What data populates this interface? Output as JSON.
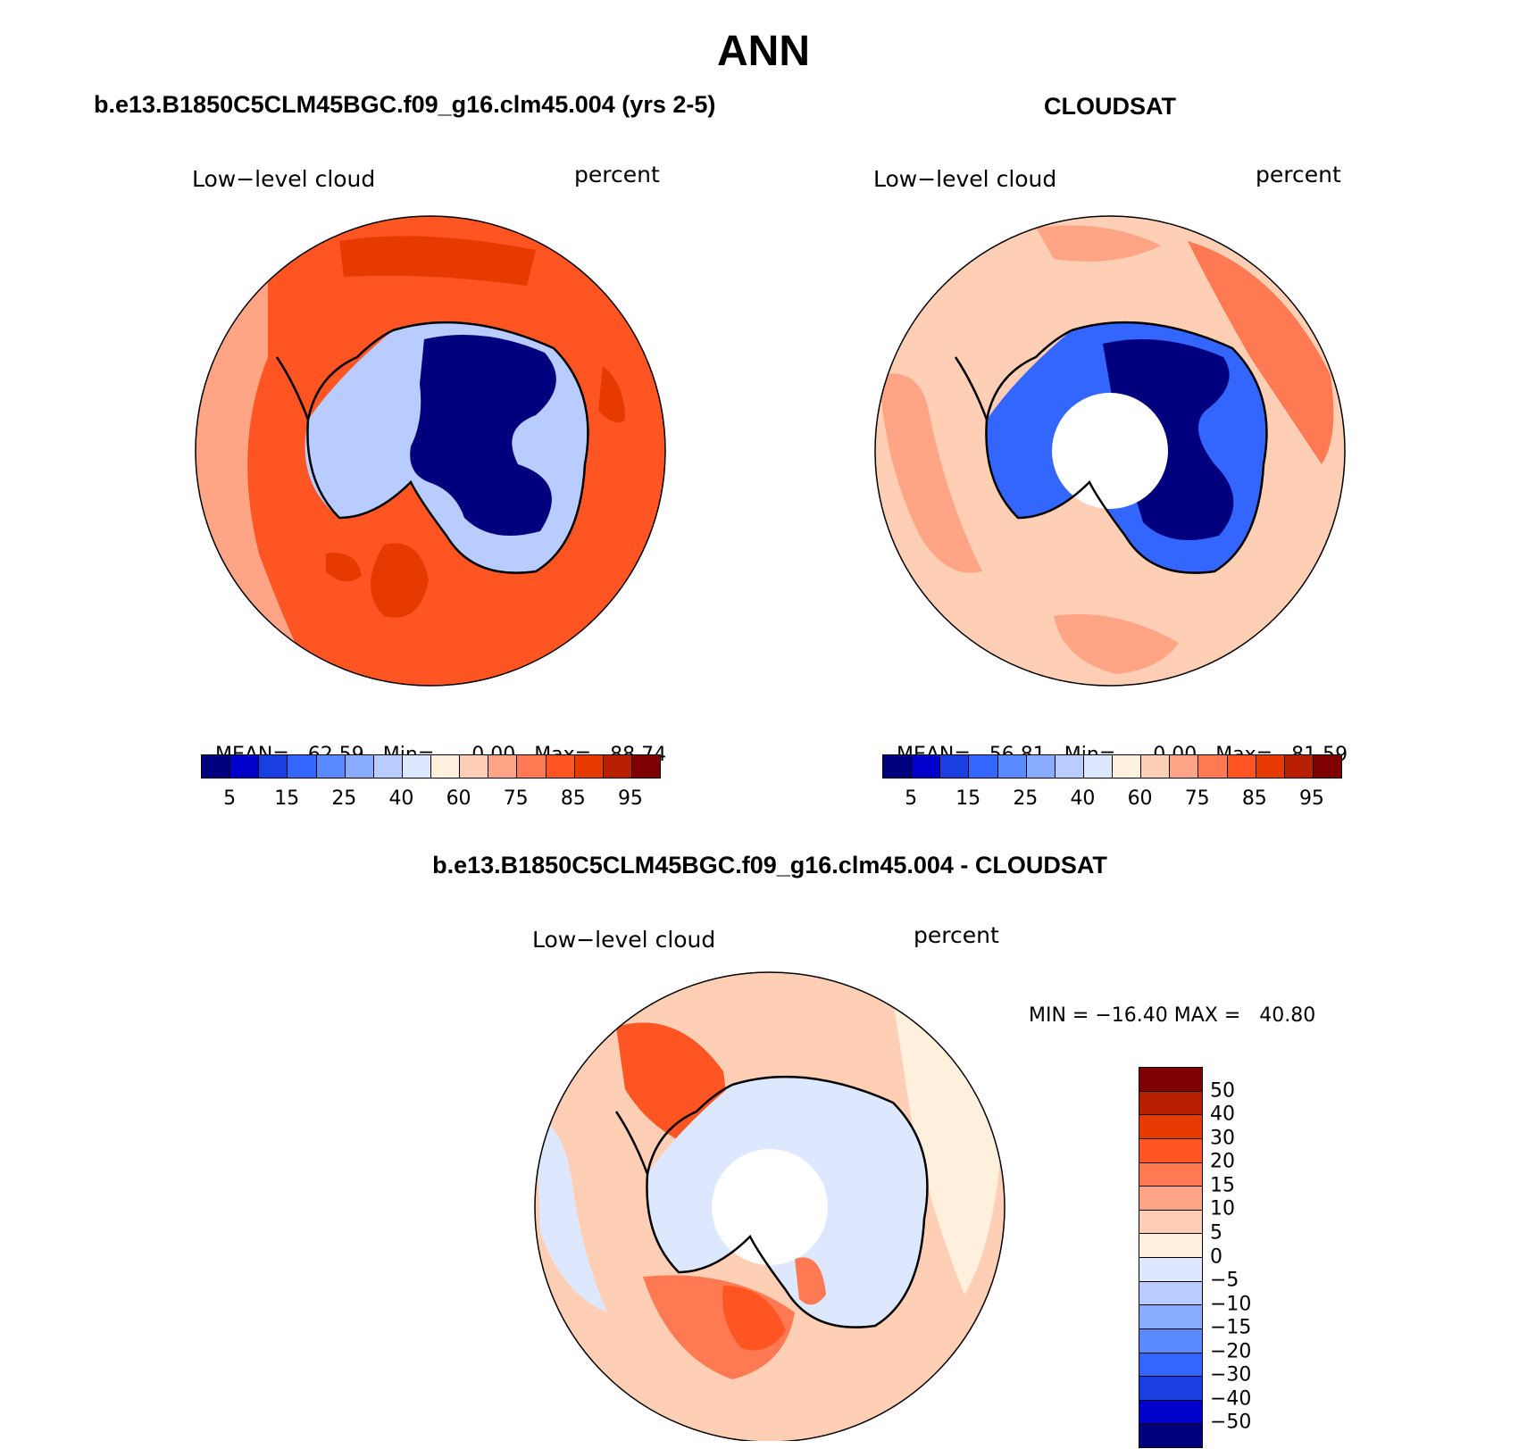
{
  "title": "ANN",
  "panels": [
    {
      "id": "model",
      "title": "b.e13.B1850C5CLM45BGC.f09_g16.clm45.004 (yrs 2-5)",
      "left_label": "Low−level cloud",
      "right_label": "percent",
      "stats": {
        "mean_label": "MEAN=",
        "mean": "62.59",
        "min_label": "Min=",
        "min": "0.00",
        "max_label": "Max=",
        "max": "88.74"
      }
    },
    {
      "id": "obs",
      "title": "CLOUDSAT",
      "left_label": "Low−level cloud",
      "right_label": "percent",
      "stats": {
        "mean_label": "MEAN=",
        "mean": "56.81",
        "min_label": "Min=",
        "min": "0.00",
        "max_label": "Max=",
        "max": "81.59"
      }
    },
    {
      "id": "diff",
      "title": "b.e13.B1850C5CLM45BGC.f09_g16.clm45.004 - CLOUDSAT",
      "left_label": "Low−level cloud",
      "right_label": "percent",
      "stats_text": "MIN = −16.40 MAX =   40.80"
    }
  ],
  "colorbar_main": {
    "colors": [
      "#00007f",
      "#0000cc",
      "#1a3fe0",
      "#3366ff",
      "#5a8aff",
      "#8aacff",
      "#b8ccff",
      "#dde8ff",
      "#fff0de",
      "#ffcfb5",
      "#ffa586",
      "#ff7a52",
      "#ff5522",
      "#e63a00",
      "#b81e00",
      "#7f0000"
    ],
    "labels": [
      "5",
      "15",
      "25",
      "40",
      "60",
      "75",
      "85",
      "95"
    ]
  },
  "colorbar_diff": {
    "colors": [
      "#7f0000",
      "#b81e00",
      "#e63a00",
      "#ff5522",
      "#ff7a52",
      "#ffa586",
      "#ffcfb5",
      "#fff0de",
      "#dde8ff",
      "#b8ccff",
      "#8aacff",
      "#5a8aff",
      "#3366ff",
      "#1a3fe0",
      "#0000cc",
      "#00007f"
    ],
    "labels": [
      "50",
      "40",
      "30",
      "20",
      "15",
      "10",
      "5",
      "0",
      "−5",
      "−10",
      "−15",
      "−20",
      "−30",
      "−40",
      "−50"
    ]
  },
  "map_colors": {
    "ocean_model": "#ff5522",
    "ocean_model_dark": "#e63a00",
    "ocean_model_light": "#ffa586",
    "ant_model_inner": "#00007f",
    "ant_model_edge": "#b8ccff",
    "ocean_obs": "#ffcfb5",
    "ocean_obs_patch": "#ffa586",
    "ocean_obs_strong": "#ff7a52",
    "ant_obs_inner": "#00007f",
    "ant_obs_edge": "#3366ff",
    "diff_base": "#ffcfb5",
    "diff_pos": "#ff7a52",
    "diff_strong": "#ff5522",
    "diff_neg": "#dde8ff",
    "diff_light": "#fff0de"
  }
}
